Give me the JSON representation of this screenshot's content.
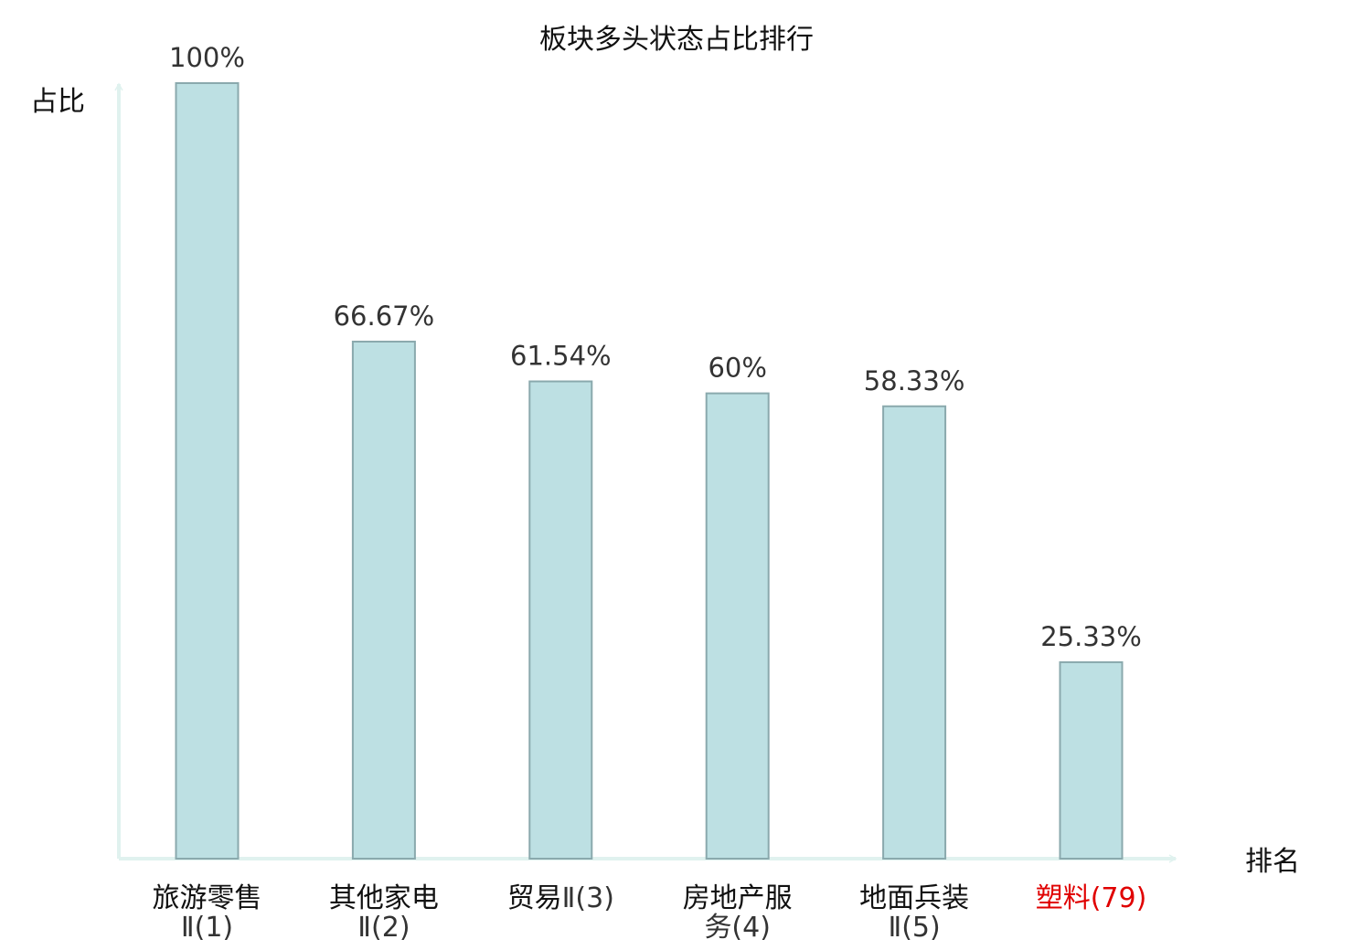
{
  "chart_data": {
    "type": "bar",
    "title": "板块多头状态占比排行",
    "ylabel": "占比",
    "xlabel": "排名",
    "ylim": [
      0,
      100
    ],
    "grid": false,
    "categories": [
      {
        "name": "旅游零售",
        "rank": "Ⅱ(1)"
      },
      {
        "name": "其他家电",
        "rank": "Ⅱ(2)"
      },
      {
        "name": "贸易",
        "rank": "Ⅱ(3)"
      },
      {
        "name": "房地产服",
        "rank": "务(4)"
      },
      {
        "name": "地面兵装",
        "rank": "Ⅱ(5)"
      },
      {
        "name": "塑料",
        "rank": "(79)"
      }
    ],
    "values": [
      100,
      66.67,
      61.54,
      60,
      58.33,
      25.33
    ],
    "value_labels": [
      "100%",
      "66.67%",
      "61.54%",
      "60%",
      "58.33%",
      "25.33%"
    ],
    "highlight_index": 5
  },
  "colors": {
    "bar_fill": "#bde0e3",
    "bar_stroke": "#8aa9ad",
    "axis": "#e0f2ef",
    "label_text": "#111111",
    "rank_text": "#333333",
    "highlight_text": "#e00000"
  }
}
